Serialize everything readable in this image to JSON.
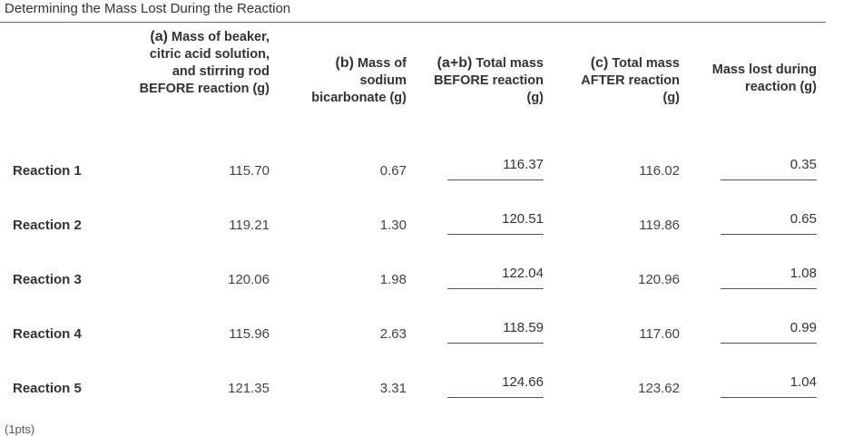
{
  "title": "Determining the Mass Lost During the Reaction",
  "table": {
    "headers": {
      "a": {
        "lead": "(a)",
        "rest": " Mass of beaker, citric acid solution, and stirring rod BEFORE reaction (g)"
      },
      "b": {
        "lead": "(b)",
        "rest": " Mass of sodium bicarbonate (g)"
      },
      "ab": {
        "lead": "(a+b)",
        "rest": " Total mass BEFORE reaction (g)"
      },
      "c": {
        "lead": "(c)",
        "rest": " Total mass AFTER reaction (g)"
      },
      "lost": {
        "lead": "",
        "rest": "Mass lost during reaction (g)"
      }
    },
    "rows": [
      {
        "label": "Reaction 1",
        "a": "115.70",
        "b": "0.67",
        "ab": "116.37",
        "c": "116.02",
        "lost": "0.35"
      },
      {
        "label": "Reaction 2",
        "a": "119.21",
        "b": "1.30",
        "ab": "120.51",
        "c": "119.86",
        "lost": "0.65"
      },
      {
        "label": "Reaction 3",
        "a": "120.06",
        "b": "1.98",
        "ab": "122.04",
        "c": "120.96",
        "lost": "1.08"
      },
      {
        "label": "Reaction 4",
        "a": "115.96",
        "b": "2.63",
        "ab": "118.59",
        "c": "117.60",
        "lost": "0.99"
      },
      {
        "label": "Reaction 5",
        "a": "121.35",
        "b": "3.31",
        "ab": "124.66",
        "c": "123.62",
        "lost": "1.04"
      }
    ]
  },
  "footnote": "(1pts)"
}
